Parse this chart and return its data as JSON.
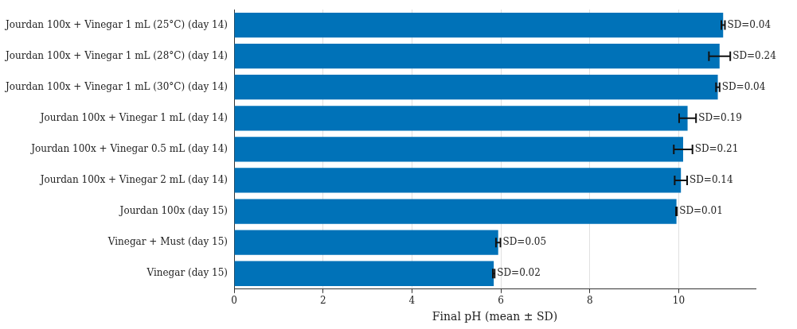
{
  "chart_data": {
    "type": "bar",
    "orientation": "horizontal",
    "xlabel": "Final pH (mean ± SD)",
    "categories": [
      "Jourdan 100x + Vinegar 1 mL (25°C) (day 14)",
      "Jourdan 100x + Vinegar 1 mL (28°C) (day 14)",
      "Jourdan 100x + Vinegar 1 mL (30°C) (day 14)",
      "Jourdan 100x + Vinegar 1 mL (day 14)",
      "Jourdan 100x + Vinegar 0.5 mL (day 14)",
      "Jourdan 100x + Vinegar 2 mL (day 14)",
      "Jourdan 100x (day 15)",
      "Vinegar + Must (day 15)",
      "Vinegar (day 15)"
    ],
    "values": [
      11.0,
      10.92,
      10.88,
      10.2,
      10.1,
      10.05,
      9.95,
      5.94,
      5.84
    ],
    "errors": [
      0.04,
      0.24,
      0.04,
      0.19,
      0.21,
      0.14,
      0.01,
      0.05,
      0.02
    ],
    "annotations": [
      {
        "text": "SD=0.04",
        "x": 11.04,
        "y": "Jourdan 100x + Vinegar 1 mL (25°C) (day 14)"
      },
      {
        "text": "SD=0.24",
        "x": 11.16,
        "y": "Jourdan 100x + Vinegar 1 mL (28°C) (day 14)"
      },
      {
        "text": "SD=0.04",
        "x": 10.92,
        "y": "Jourdan 100x + Vinegar 1 mL (30°C) (day 14)"
      },
      {
        "text": "SD=0.19",
        "x": 10.39,
        "y": "Jourdan 100x + Vinegar 1 mL (day 14)"
      },
      {
        "text": "SD=0.21",
        "x": 10.31,
        "y": "Jourdan 100x + Vinegar 0.5 mL (day 14)"
      },
      {
        "text": "SD=0.14",
        "x": 10.19,
        "y": "Jourdan 100x + Vinegar 2 mL (day 14)"
      },
      {
        "text": "SD=0.01",
        "x": 9.96,
        "y": "Jourdan 100x (day 15)"
      },
      {
        "text": "SD=0.05",
        "x": 5.99,
        "y": "Vinegar + Must (day 15)"
      },
      {
        "text": "SD=0.02",
        "x": 5.86,
        "y": "Vinegar (day 15)"
      }
    ],
    "color": "#0072b8",
    "xlim": [
      0,
      11.73
    ],
    "xticks": [
      0,
      2,
      4,
      6,
      8,
      10
    ],
    "grid": "x"
  }
}
